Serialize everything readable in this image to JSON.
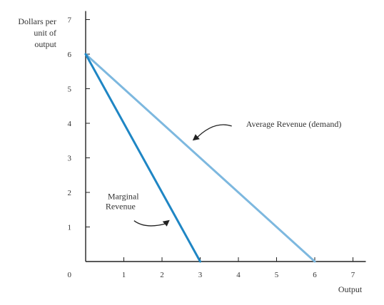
{
  "chart_data": {
    "type": "line",
    "title": "",
    "xlabel": "Output",
    "ylabel_lines": [
      "Dollars per",
      "unit of",
      "output"
    ],
    "xlim": [
      0,
      7
    ],
    "ylim": [
      0,
      7
    ],
    "x_ticks": [
      1,
      2,
      3,
      4,
      5,
      6,
      7
    ],
    "y_ticks": [
      1,
      2,
      3,
      4,
      5,
      6,
      7
    ],
    "origin_label": "0",
    "grid": false,
    "series": [
      {
        "key": "average-revenue",
        "points": [
          [
            0,
            6
          ],
          [
            6,
            0
          ]
        ],
        "color": "#7db8df",
        "width": 3
      },
      {
        "key": "marginal-revenue",
        "points": [
          [
            0,
            6
          ],
          [
            3,
            0
          ]
        ],
        "color": "#1f86c4",
        "width": 3
      }
    ],
    "annotations": [
      {
        "key": "average-revenue-label",
        "text": "Average Revenue (demand)",
        "text_at": [
          4.2,
          3.9
        ],
        "arrow_tip": [
          2.8,
          3.5
        ]
      },
      {
        "key": "marginal-revenue-label",
        "lines": [
          "Marginal",
          "Revenue"
        ],
        "text_at": [
          0.52,
          1.8
        ],
        "arrow_tip": [
          2.2,
          1.2
        ]
      }
    ]
  }
}
